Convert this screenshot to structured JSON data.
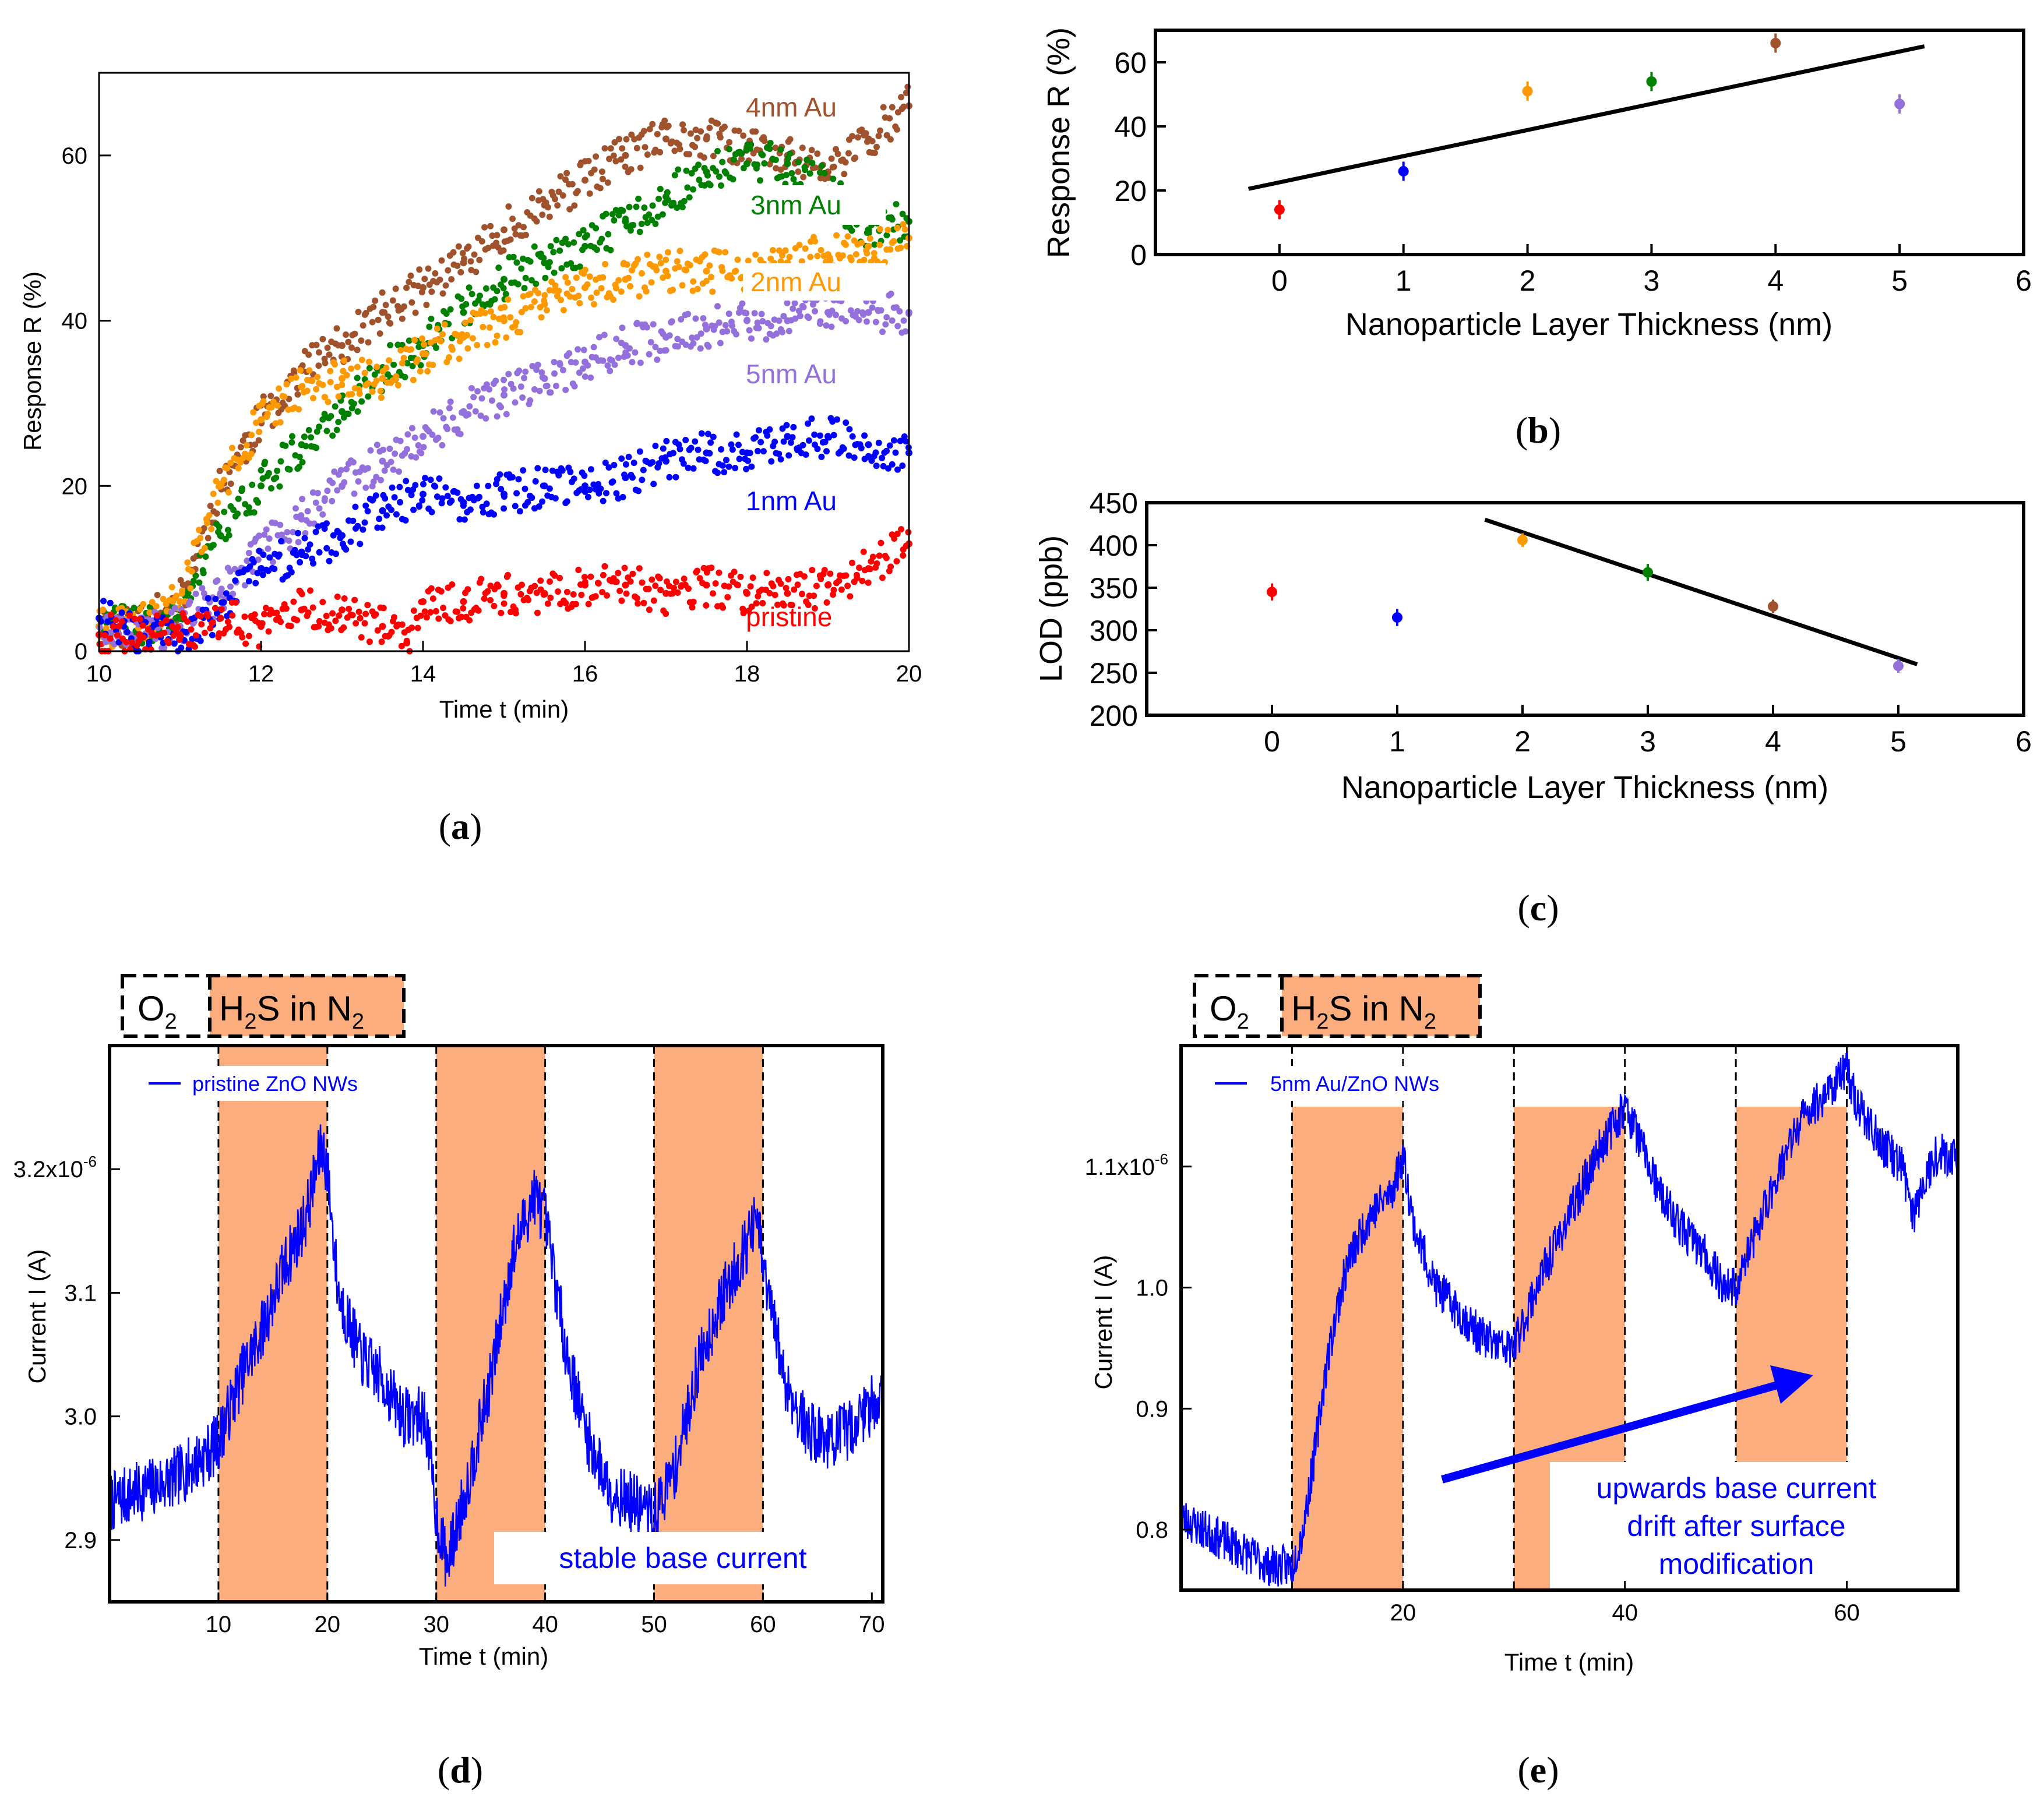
{
  "chart_data": [
    {
      "id": "a",
      "type": "scatter",
      "caption": "a",
      "xlabel": "Time t (min)",
      "ylabel": "Response R (%)",
      "xlim": [
        10,
        20
      ],
      "ylim": [
        0,
        70
      ],
      "xticks": [
        "10",
        "12",
        "14",
        "16",
        "18",
        "20"
      ],
      "yticks": [
        "0",
        "20",
        "40",
        "60"
      ],
      "series": [
        {
          "name": "4nm Au",
          "color": "#a0522d",
          "x": [
            10,
            10.5,
            11,
            11.5,
            12,
            12.5,
            13,
            13.5,
            14,
            14.5,
            15,
            15.5,
            16,
            16.5,
            17,
            17.5,
            18,
            18.5,
            19,
            19.5,
            20
          ],
          "y": [
            3,
            3,
            6,
            20,
            28,
            34,
            37,
            41,
            44,
            47,
            51,
            54,
            57,
            60,
            62,
            62,
            61,
            60,
            58,
            62,
            66
          ]
        },
        {
          "name": "3nm Au",
          "color": "#008000",
          "x": [
            10,
            10.5,
            11,
            11.5,
            12,
            12.5,
            13,
            13.5,
            14,
            14.5,
            15,
            15.5,
            16,
            16.5,
            17,
            17.5,
            18,
            18.5,
            19,
            19.5,
            20
          ],
          "y": [
            3,
            3,
            5,
            14,
            20,
            25,
            29,
            34,
            37,
            41,
            45,
            47,
            49,
            52,
            55,
            58,
            59,
            59,
            56,
            51,
            52
          ]
        },
        {
          "name": "2nm Au",
          "color": "#ff9900",
          "x": [
            10,
            10.5,
            11,
            11.5,
            12,
            12.5,
            13,
            13.5,
            14,
            14.5,
            15,
            15.5,
            16,
            16.5,
            17,
            17.5,
            18,
            18.5,
            19,
            19.5,
            20
          ],
          "y": [
            3,
            3,
            6,
            20,
            28,
            32,
            33,
            33,
            36,
            38,
            40,
            42,
            44,
            45,
            46,
            46,
            46,
            47,
            48,
            49,
            50
          ]
        },
        {
          "name": "5nm Au",
          "color": "#9370db",
          "x": [
            10,
            10.5,
            11,
            11.5,
            12,
            12.5,
            13,
            13.5,
            14,
            14.5,
            15,
            15.5,
            16,
            16.5,
            17,
            17.5,
            18,
            18.5,
            19,
            19.5,
            20
          ],
          "y": [
            2,
            2,
            3,
            7,
            12,
            16,
            20,
            23,
            26,
            29,
            31,
            33,
            35,
            37,
            38,
            39,
            40,
            40,
            41,
            41,
            41
          ]
        },
        {
          "name": "1nm Au",
          "color": "#0000ff",
          "x": [
            10,
            10.5,
            11,
            11.5,
            12,
            12.5,
            13,
            13.5,
            14,
            14.5,
            15,
            15.5,
            16,
            16.5,
            17,
            17.5,
            18,
            18.5,
            19,
            19.5,
            20
          ],
          "y": [
            4,
            2,
            2,
            5,
            10,
            12,
            14,
            17,
            19,
            18,
            19,
            20,
            20,
            21,
            23,
            24,
            24,
            26,
            26,
            25,
            24
          ]
        },
        {
          "name": "pristine",
          "color": "#ff0000",
          "x": [
            10,
            10.5,
            11,
            11.5,
            12,
            12.5,
            13,
            13.5,
            13.8,
            14,
            14.5,
            15,
            15.5,
            16,
            16.5,
            17,
            17.5,
            18,
            18.5,
            19,
            19.5,
            20
          ],
          "y": [
            2,
            2,
            2,
            4,
            3,
            5,
            5,
            3,
            1,
            6,
            6,
            7,
            7,
            8,
            8,
            7,
            8,
            7,
            7,
            8,
            10,
            13
          ]
        }
      ]
    },
    {
      "id": "b",
      "type": "scatter",
      "caption": "b",
      "xlabel": "Nanoparticle Layer Thickness (nm)",
      "ylabel": "Response R (%)",
      "xlim": [
        -1,
        6
      ],
      "ylim": [
        0,
        70
      ],
      "xticks": [
        "0",
        "1",
        "2",
        "3",
        "4",
        "5",
        "6"
      ],
      "yticks": [
        "0",
        "20",
        "40",
        "60"
      ],
      "points": [
        {
          "x": 0,
          "y": 14,
          "err": 3,
          "color": "#ff0000"
        },
        {
          "x": 1,
          "y": 26,
          "err": 3,
          "color": "#0000ff"
        },
        {
          "x": 2,
          "y": 51,
          "err": 3,
          "color": "#ff9900"
        },
        {
          "x": 3,
          "y": 54,
          "err": 3,
          "color": "#008000"
        },
        {
          "x": 4,
          "y": 66,
          "err": 3,
          "color": "#a0522d"
        },
        {
          "x": 5,
          "y": 47,
          "err": 3,
          "color": "#9370db"
        }
      ],
      "fit": {
        "x": [
          -0.25,
          5.2
        ],
        "y": [
          20.5,
          65
        ]
      }
    },
    {
      "id": "c",
      "type": "scatter",
      "caption": "c",
      "xlabel": "Nanoparticle Layer Thickness (nm)",
      "ylabel": "LOD (ppb)",
      "xlim": [
        -1,
        6
      ],
      "ylim": [
        200,
        450
      ],
      "xticks": [
        "0",
        "1",
        "2",
        "3",
        "4",
        "5",
        "6"
      ],
      "yticks": [
        "200",
        "250",
        "300",
        "350",
        "400",
        "450"
      ],
      "points": [
        {
          "x": 0,
          "y": 345,
          "err": 10,
          "color": "#ff0000"
        },
        {
          "x": 1,
          "y": 315,
          "err": 10,
          "color": "#0000ff"
        },
        {
          "x": 2,
          "y": 406,
          "err": 8,
          "color": "#ff9900"
        },
        {
          "x": 3,
          "y": 368,
          "err": 10,
          "color": "#008000"
        },
        {
          "x": 4,
          "y": 328,
          "err": 8,
          "color": "#a0522d"
        },
        {
          "x": 5,
          "y": 258,
          "err": 8,
          "color": "#9370db"
        }
      ],
      "fit": {
        "x": [
          1.7,
          5.15
        ],
        "y": [
          430,
          260
        ]
      }
    },
    {
      "id": "d",
      "type": "line",
      "caption": "d",
      "xlabel": "Time t (min)",
      "ylabel": "Current I (A)",
      "xlim": [
        0,
        71
      ],
      "ylim": [
        2.85e-06,
        3.3e-06
      ],
      "xticks": [
        10,
        20,
        30,
        40,
        50,
        60,
        70
      ],
      "yticks": [
        {
          "value": 2.9e-06,
          "label": "2.9"
        },
        {
          "value": 3e-06,
          "label": "3.0"
        },
        {
          "value": 3.1e-06,
          "label": "3.1"
        },
        {
          "value": 3.2e-06,
          "label": "3.2x10",
          "exp": "-6"
        }
      ],
      "exposure_windows": [
        [
          10,
          20
        ],
        [
          30,
          40
        ],
        [
          50,
          60
        ]
      ],
      "legend": "pristine ZnO NWs",
      "annotation": "stable base current",
      "series": [
        {
          "name": "pristine ZnO NWs",
          "color": "#0000ff",
          "x": [
            0,
            3,
            6,
            9,
            10,
            12,
            14,
            16,
            18,
            19.5,
            20,
            21,
            23,
            25,
            27,
            29,
            30,
            31,
            33,
            35,
            37,
            39,
            40,
            42,
            44,
            46,
            48,
            50,
            52,
            54,
            56,
            58,
            59.5,
            60,
            62,
            64,
            66,
            68,
            71
          ],
          "y": [
            2.93e-06,
            2.94e-06,
            2.95e-06,
            2.97e-06,
            2.98e-06,
            3.03e-06,
            3.07e-06,
            3.12e-06,
            3.16e-06,
            3.22e-06,
            3.2e-06,
            3.1e-06,
            3.05e-06,
            3.03e-06,
            3e-06,
            3e-06,
            2.92e-06,
            2.88e-06,
            2.95e-06,
            3.03e-06,
            3.13e-06,
            3.18e-06,
            3.16e-06,
            3.05e-06,
            2.98e-06,
            2.94e-06,
            2.93e-06,
            2.92e-06,
            2.96e-06,
            3.04e-06,
            3.09e-06,
            3.13e-06,
            3.16e-06,
            3.12e-06,
            3.03e-06,
            2.99e-06,
            2.98e-06,
            2.99e-06,
            3.02e-06
          ]
        }
      ]
    },
    {
      "id": "e",
      "type": "line",
      "caption": "e",
      "xlabel": "Time t (min)",
      "ylabel": "Current I (A)",
      "xlim": [
        0,
        70
      ],
      "ylim": [
        7.5e-07,
        1.2e-06
      ],
      "xticks": [
        20,
        40,
        60
      ],
      "yticks": [
        {
          "value": 8e-07,
          "label": "0.8"
        },
        {
          "value": 9e-07,
          "label": "0.9"
        },
        {
          "value": 1e-06,
          "label": "1.0"
        },
        {
          "value": 1.1e-06,
          "label": "1.1x10",
          "exp": "-6"
        }
      ],
      "exposure_windows": [
        [
          10,
          20
        ],
        [
          30,
          40
        ],
        [
          50,
          60
        ]
      ],
      "legend": "5nm Au/ZnO NWs",
      "annotation": [
        "upwards base current",
        "drift after surface",
        "modification"
      ],
      "series": [
        {
          "name": "5nm Au/ZnO NWs",
          "color": "#0000ff",
          "x": [
            0,
            2,
            4,
            6,
            8,
            10,
            11,
            12,
            13,
            14,
            15,
            17,
            19,
            20,
            21,
            23,
            25,
            27,
            29,
            30,
            32,
            34,
            36,
            38,
            40,
            41,
            43,
            45,
            47,
            49,
            50,
            52,
            54,
            56,
            58,
            60,
            61,
            63,
            65,
            66,
            67,
            68,
            70
          ],
          "y": [
            8.1e-07,
            8e-07,
            7.9e-07,
            7.8e-07,
            7.7e-07,
            7.7e-07,
            8e-07,
            8.6e-07,
            9.3e-07,
            9.8e-07,
            1.02e-06,
            1.06e-06,
            1.08e-06,
            1.11e-06,
            1.05e-06,
            1e-06,
            9.8e-07,
            9.6e-07,
            9.5e-07,
            9.5e-07,
            1e-06,
            1.04e-06,
            1.08e-06,
            1.12e-06,
            1.15e-06,
            1.13e-06,
            1.08e-06,
            1.05e-06,
            1.03e-06,
            1e-06,
            1e-06,
            1.05e-06,
            1.1e-06,
            1.14e-06,
            1.16e-06,
            1.18e-06,
            1.15e-06,
            1.12e-06,
            1.1e-06,
            1.06e-06,
            1.09e-06,
            1.11e-06,
            1.11e-06
          ]
        }
      ]
    }
  ],
  "gas_box": {
    "o2_main": "O",
    "o2_sub": "2",
    "h2s_a": "H",
    "h2s_sub1": "2",
    "h2s_b": "S in N",
    "h2s_sub2": "2"
  },
  "captions": {
    "a": "a",
    "b": "b",
    "c": "c",
    "d": "d",
    "e": "e"
  }
}
